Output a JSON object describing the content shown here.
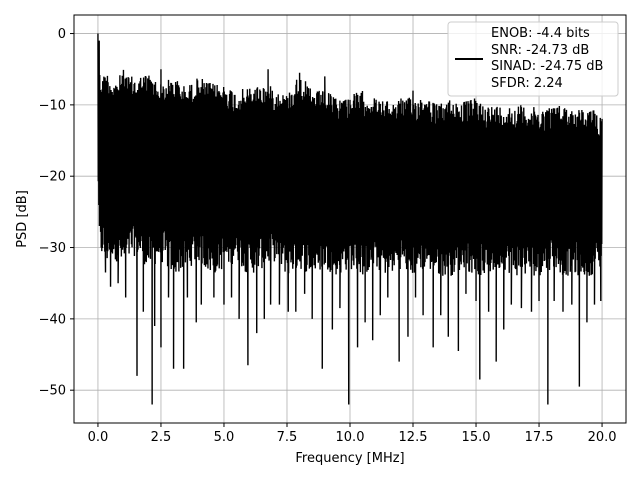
{
  "chart_data": {
    "type": "line",
    "xlabel": "Frequency [MHz]",
    "ylabel": "PSD [dB]",
    "xlim": [
      -0.95,
      20.95
    ],
    "ylim": [
      -54.6,
      2.6
    ],
    "xticks": [
      0.0,
      2.5,
      5.0,
      7.5,
      10.0,
      12.5,
      15.0,
      17.5,
      20.0
    ],
    "xtick_labels": [
      "0.0",
      "2.5",
      "5.0",
      "7.5",
      "10.0",
      "12.5",
      "15.0",
      "17.5",
      "20.0"
    ],
    "yticks": [
      0,
      -10,
      -20,
      -30,
      -40,
      -50
    ],
    "ytick_labels": [
      "0",
      "−10",
      "−20",
      "−30",
      "−40",
      "−50"
    ],
    "grid": true,
    "legend_position": "top-right",
    "legend": [
      "ENOB: -4.4 bits",
      "SNR: -24.73 dB",
      "SINAD: -24.75 dB",
      "SFDR: 2.24"
    ],
    "series_color": "#000000",
    "series": [
      {
        "x": [
          0.0,
          0.02,
          0.05,
          0.1,
          0.2,
          0.3,
          0.5,
          0.75,
          1.0,
          1.25,
          1.5,
          2.0,
          2.5,
          3.0,
          3.5,
          4.0,
          4.5,
          5.0,
          5.5,
          6.0,
          6.5,
          7.0,
          7.5,
          8.0,
          8.5,
          9.0,
          9.5,
          10.0,
          10.5,
          11.0,
          11.5,
          12.0,
          12.5,
          13.0,
          13.5,
          14.0,
          14.5,
          15.0,
          15.5,
          16.0,
          16.5,
          17.0,
          17.5,
          18.0,
          18.5,
          19.0,
          19.5,
          20.0
        ],
        "upper": [
          0.0,
          -3.0,
          -5.0,
          -5.5,
          -6.0,
          -5.0,
          -6.0,
          -6.5,
          -5.0,
          -6.0,
          -6.0,
          -5.5,
          -7.0,
          -6.0,
          -7.5,
          -6.0,
          -7.0,
          -7.0,
          -8.0,
          -7.5,
          -7.0,
          -7.5,
          -8.5,
          -5.5,
          -8.0,
          -8.0,
          -9.0,
          -8.5,
          -8.0,
          -9.0,
          -9.5,
          -9.0,
          -9.0,
          -8.5,
          -10.0,
          -9.0,
          -9.5,
          -9.0,
          -10.0,
          -10.0,
          -10.0,
          -10.0,
          -10.5,
          -10.0,
          -10.0,
          -10.5,
          -10.5,
          -11.0
        ],
        "lower": [
          -14.0,
          -28.0,
          -30.0,
          -32.0,
          -31.0,
          -33.0,
          -31.0,
          -32.0,
          -33.0,
          -32.0,
          -31.0,
          -33.0,
          -32.0,
          -34.0,
          -33.0,
          -32.0,
          -34.0,
          -33.0,
          -32.0,
          -34.0,
          -33.0,
          -32.0,
          -34.0,
          -33.0,
          -34.0,
          -33.0,
          -34.0,
          -33.0,
          -34.0,
          -33.0,
          -34.0,
          -33.0,
          -34.0,
          -33.0,
          -34.0,
          -34.0,
          -33.0,
          -34.0,
          -34.0,
          -33.0,
          -34.0,
          -34.0,
          -34.0,
          -33.0,
          -34.0,
          -34.0,
          -34.0,
          -33.0
        ],
        "dips": [
          [
            0.3,
            -33.5
          ],
          [
            0.5,
            -35.5
          ],
          [
            0.8,
            -35.0
          ],
          [
            1.1,
            -37.0
          ],
          [
            1.55,
            -48.0
          ],
          [
            1.8,
            -39.0
          ],
          [
            2.15,
            -52.0
          ],
          [
            2.25,
            -41.0
          ],
          [
            2.5,
            -44.0
          ],
          [
            2.8,
            -37.0
          ],
          [
            3.0,
            -47.0
          ],
          [
            3.4,
            -47.0
          ],
          [
            3.55,
            -37.0
          ],
          [
            3.9,
            -40.5
          ],
          [
            4.1,
            -38.0
          ],
          [
            4.6,
            -37.0
          ],
          [
            5.0,
            -38.0
          ],
          [
            5.3,
            -37.0
          ],
          [
            5.6,
            -40.0
          ],
          [
            5.95,
            -46.5
          ],
          [
            6.3,
            -42.0
          ],
          [
            6.6,
            -40.0
          ],
          [
            6.85,
            -38.0
          ],
          [
            7.2,
            -38.0
          ],
          [
            7.55,
            -39.0
          ],
          [
            7.85,
            -39.0
          ],
          [
            8.2,
            -36.5
          ],
          [
            8.5,
            -40.0
          ],
          [
            8.9,
            -47.0
          ],
          [
            9.3,
            -41.5
          ],
          [
            9.6,
            -38.5
          ],
          [
            9.95,
            -52.0
          ],
          [
            10.3,
            -44.0
          ],
          [
            10.6,
            -40.5
          ],
          [
            10.9,
            -43.0
          ],
          [
            11.2,
            -39.5
          ],
          [
            11.5,
            -37.0
          ],
          [
            11.95,
            -46.0
          ],
          [
            12.3,
            -42.5
          ],
          [
            12.6,
            -37.0
          ],
          [
            12.9,
            -39.5
          ],
          [
            13.3,
            -44.0
          ],
          [
            13.6,
            -39.5
          ],
          [
            13.9,
            -42.5
          ],
          [
            14.3,
            -44.5
          ],
          [
            14.6,
            -36.5
          ],
          [
            15.0,
            -37.5
          ],
          [
            15.15,
            -48.5
          ],
          [
            15.5,
            -39.0
          ],
          [
            15.8,
            -46.0
          ],
          [
            16.1,
            -41.5
          ],
          [
            16.4,
            -38.0
          ],
          [
            16.8,
            -38.5
          ],
          [
            17.2,
            -39.0
          ],
          [
            17.5,
            -37.5
          ],
          [
            17.85,
            -52.0
          ],
          [
            18.1,
            -37.5
          ],
          [
            18.45,
            -39.0
          ],
          [
            18.8,
            -38.0
          ],
          [
            19.1,
            -49.5
          ],
          [
            19.4,
            -40.5
          ],
          [
            19.7,
            -38.0
          ],
          [
            19.95,
            -37.5
          ]
        ],
        "peaks": [
          [
            0.0,
            0.0
          ],
          [
            0.05,
            -1.0
          ],
          [
            2.5,
            -5.0
          ],
          [
            6.75,
            -5.0
          ],
          [
            8.0,
            -5.5
          ],
          [
            9.0,
            -6.0
          ],
          [
            12.5,
            -8.0
          ]
        ]
      }
    ]
  }
}
